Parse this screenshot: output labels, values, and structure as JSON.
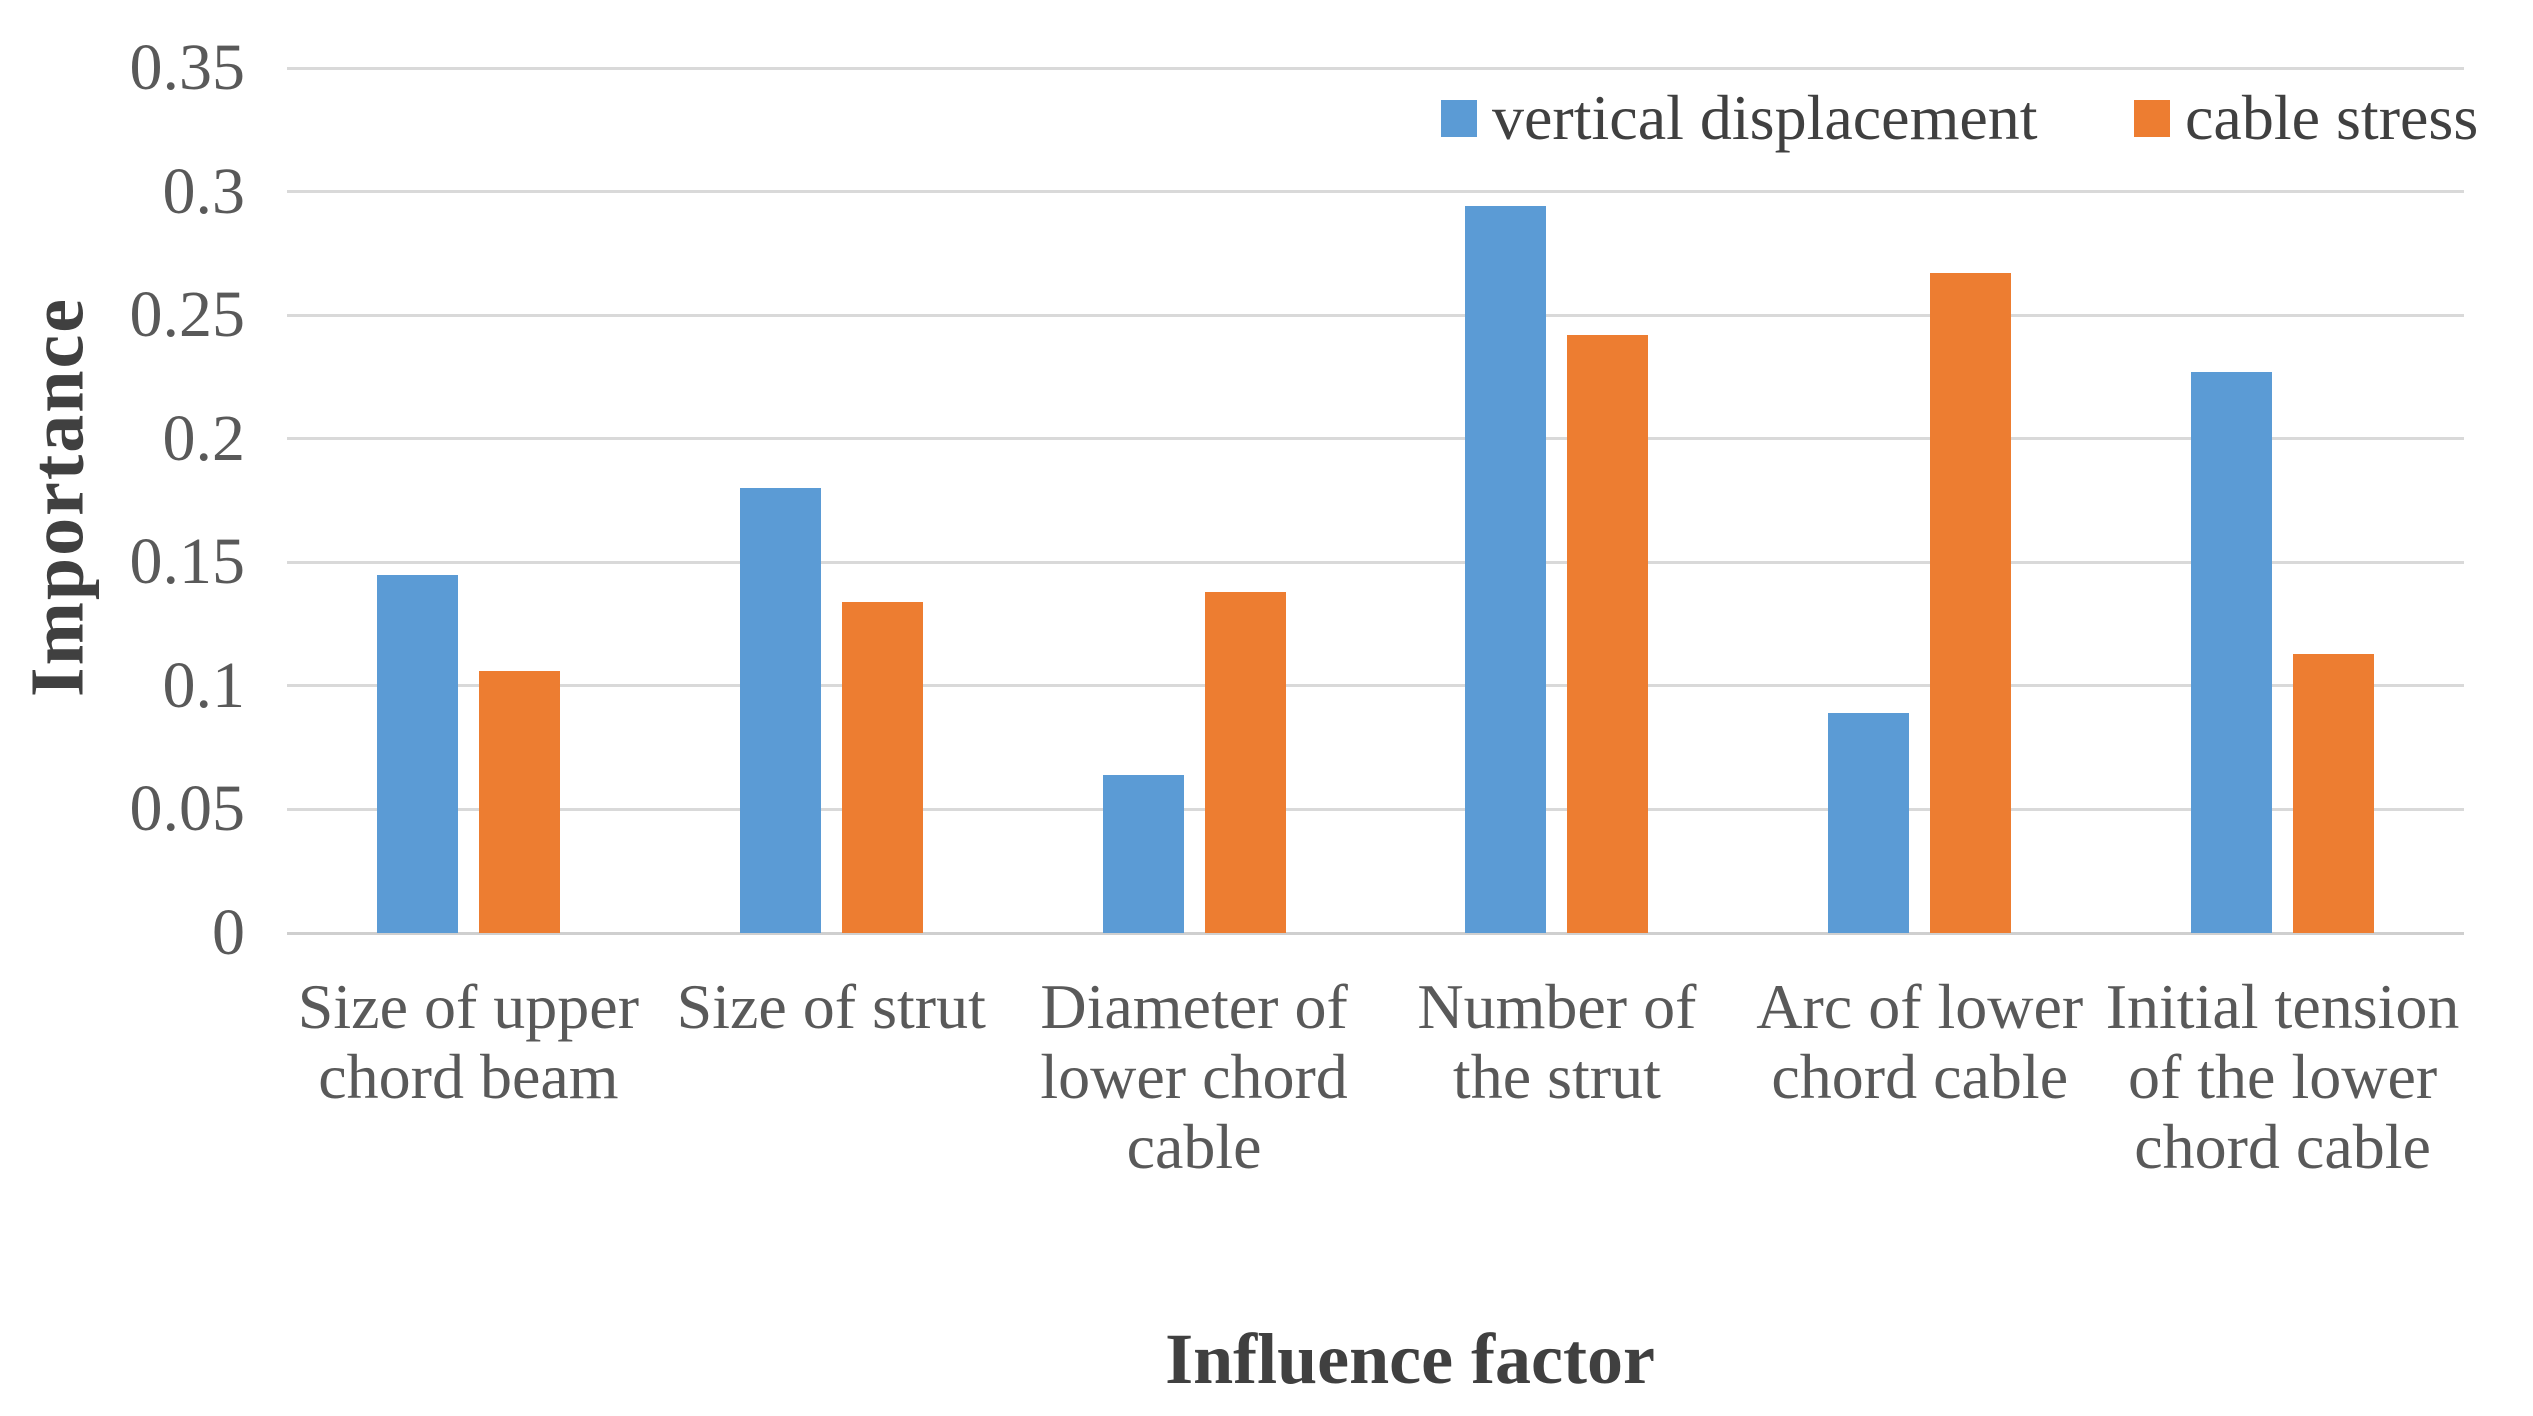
{
  "chart_data": {
    "type": "bar",
    "title": "",
    "xlabel": "Influence factor",
    "ylabel": "Importance",
    "ylim": [
      0,
      0.35
    ],
    "ytick_step": 0.05,
    "ytick_labels": [
      "0",
      "0.05",
      "0.1",
      "0.15",
      "0.2",
      "0.25",
      "0.3",
      "0.35"
    ],
    "grid": true,
    "legend_position": "top-right",
    "categories": [
      "Size of upper chord beam",
      "Size of strut",
      "Diameter of lower chord cable",
      "Number of the strut",
      "Arc of lower chord cable",
      "Initial tension of the lower chord cable"
    ],
    "category_label_lines": [
      [
        "Size of upper",
        "chord beam"
      ],
      [
        "Size of strut"
      ],
      [
        "Diameter of",
        "lower chord",
        "cable"
      ],
      [
        "Number of",
        "the strut"
      ],
      [
        "Arc of lower",
        "chord cable"
      ],
      [
        "Initial tension",
        "of the lower",
        "chord cable"
      ]
    ],
    "series": [
      {
        "name": "vertical displacement",
        "color": "#5B9BD5",
        "values": [
          0.145,
          0.18,
          0.064,
          0.294,
          0.089,
          0.227
        ]
      },
      {
        "name": "cable stress",
        "color": "#ED7D31",
        "values": [
          0.106,
          0.134,
          0.138,
          0.242,
          0.267,
          0.113
        ]
      }
    ],
    "colors": {
      "gridline": "#D9D9D9",
      "baseline": "#CFCFCF",
      "tick_text": "#595959",
      "category_text": "#595959",
      "title_text": "#404040"
    }
  }
}
